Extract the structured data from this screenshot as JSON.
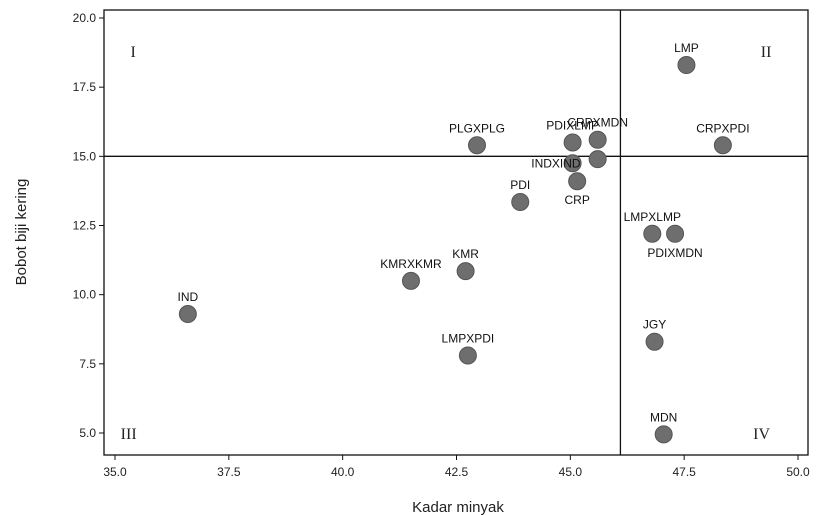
{
  "chart_data": {
    "type": "scatter",
    "xlabel": "Kadar minyak",
    "ylabel": "Bobot biji kering",
    "xlim": [
      35.0,
      50.0
    ],
    "ylim": [
      4.0,
      20.0
    ],
    "x_ticks": [
      35.0,
      37.5,
      40.0,
      42.5,
      45.0,
      47.5,
      50.0
    ],
    "y_ticks": [
      5.0,
      7.5,
      10.0,
      12.5,
      15.0,
      17.5,
      20.0
    ],
    "x_tick_labels": [
      "35.0",
      "37.5",
      "40.0",
      "42.5",
      "45.0",
      "47.5",
      "50.0"
    ],
    "y_tick_labels": [
      "5.0",
      "7.5",
      "10.0",
      "12.5",
      "15.0",
      "17.5",
      "20.0"
    ],
    "reference_lines": {
      "x": 46.1,
      "y": 15.0
    },
    "grid": false,
    "point_color": "#6e6e6e",
    "quadrants": [
      {
        "label": "I",
        "x": 35.4,
        "y": 18.8
      },
      {
        "label": "II",
        "x": 49.3,
        "y": 18.8
      },
      {
        "label": "III",
        "x": 35.3,
        "y": 5.0
      },
      {
        "label": "IV",
        "x": 49.2,
        "y": 5.0
      }
    ],
    "points": [
      {
        "label": "LMP",
        "x": 47.55,
        "y": 18.3,
        "label_pos": "above"
      },
      {
        "label": "CRPXMDN",
        "x": 45.6,
        "y": 15.6,
        "label_pos": "above"
      },
      {
        "label": "PDIXLMP",
        "x": 45.05,
        "y": 15.5,
        "label_pos": "above"
      },
      {
        "label": "PLGXPLG",
        "x": 42.95,
        "y": 15.4,
        "label_pos": "above"
      },
      {
        "label": "CRPXPDI",
        "x": 48.35,
        "y": 15.4,
        "label_pos": "above"
      },
      {
        "label": "",
        "x": 45.6,
        "y": 14.9,
        "label_pos": "none"
      },
      {
        "label": "INDXIND",
        "x": 45.05,
        "y": 14.75,
        "label_pos": "left"
      },
      {
        "label": "CRP",
        "x": 45.15,
        "y": 14.1,
        "label_pos": "below"
      },
      {
        "label": "PDI",
        "x": 43.9,
        "y": 13.35,
        "label_pos": "above"
      },
      {
        "label": "LMPXLMP",
        "x": 46.8,
        "y": 12.2,
        "label_pos": "above"
      },
      {
        "label": "PDIXMDN",
        "x": 47.3,
        "y": 12.2,
        "label_pos": "below"
      },
      {
        "label": "KMR",
        "x": 42.7,
        "y": 10.85,
        "label_pos": "above"
      },
      {
        "label": "KMRXKMR",
        "x": 41.5,
        "y": 10.5,
        "label_pos": "above"
      },
      {
        "label": "IND",
        "x": 36.6,
        "y": 9.3,
        "label_pos": "above"
      },
      {
        "label": "JGY",
        "x": 46.85,
        "y": 8.3,
        "label_pos": "above"
      },
      {
        "label": "LMPXPDI",
        "x": 42.75,
        "y": 7.8,
        "label_pos": "above"
      },
      {
        "label": "MDN",
        "x": 47.05,
        "y": 4.95,
        "label_pos": "above"
      }
    ]
  }
}
